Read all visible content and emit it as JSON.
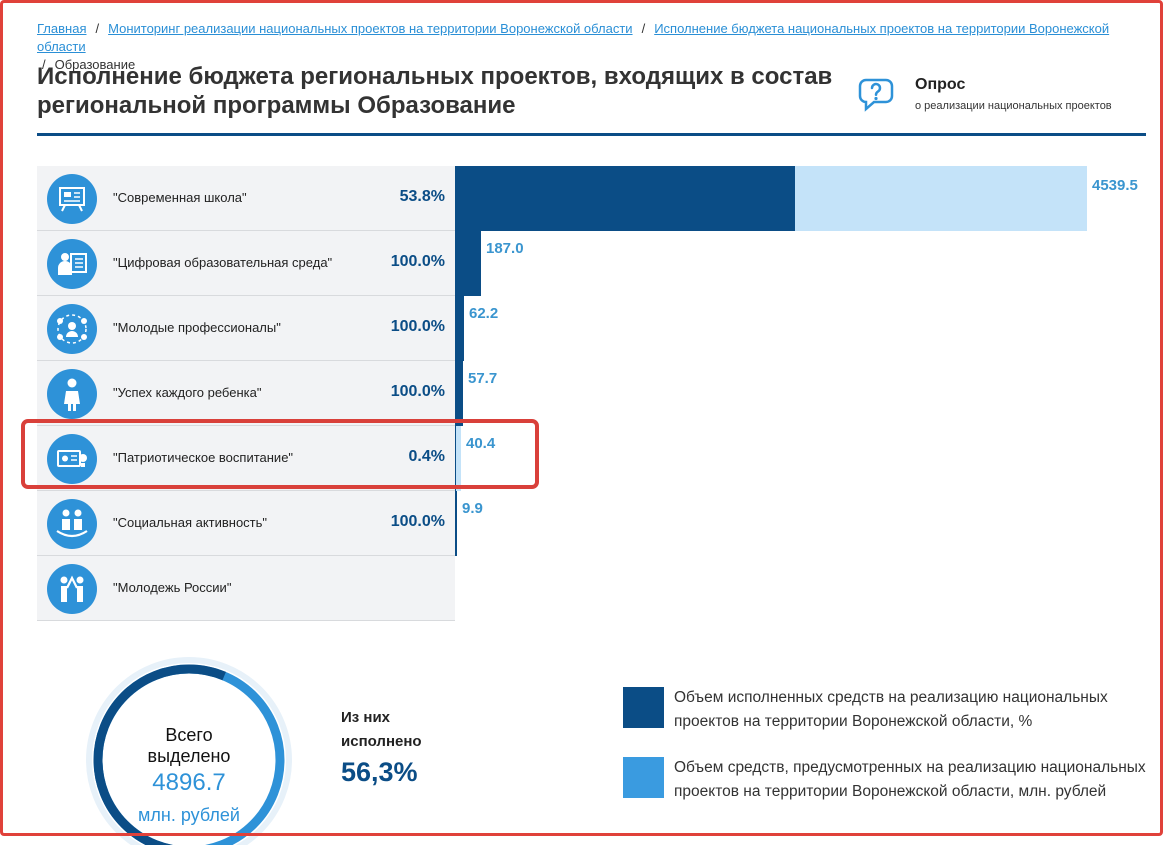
{
  "breadcrumb": {
    "home": "Главная",
    "monitoring": "Мониторинг реализации национальных проектов на территории Воронежской области",
    "budget": "Исполнение бюджета национальных проектов на территории Воронежской области",
    "current": "Образование"
  },
  "page": {
    "title": "Исполнение бюджета региональных проектов, входящих в состав региональной программы Образование"
  },
  "survey": {
    "icon": "question-chat-icon",
    "title": "Опрос",
    "subtitle": "о реализации национальных проектов"
  },
  "colors": {
    "executed": "#0b4d86",
    "planned": "#c4e3f9",
    "accent": "#2e92d8",
    "highlight": "#d9403a"
  },
  "chart_data": {
    "type": "bar",
    "orientation": "horizontal",
    "categories": [
      "\"Современная школа\"",
      "\"Цифровая образовательная среда\"",
      "\"Молодые профессионалы\"",
      "\"Успех каждого ребенка\"",
      "\"Патриотическое воспитание\"",
      "\"Социальная активность\"",
      "\"Молодежь России\""
    ],
    "icons": [
      "school-board-icon",
      "digital-teacher-icon",
      "professionals-network-icon",
      "child-icon",
      "patriotic-card-icon",
      "social-family-icon",
      "youth-group-icon"
    ],
    "planned_values": [
      4539.5,
      187.0,
      62.2,
      57.7,
      40.4,
      9.9,
      null
    ],
    "planned_labels": [
      "4539.5",
      "187.0",
      "62.2",
      "57.7",
      "40.4",
      "9.9",
      ""
    ],
    "executed_percent": [
      53.8,
      100.0,
      100.0,
      100.0,
      0.4,
      100.0,
      null
    ],
    "percent_labels": [
      "53.8%",
      "100.0%",
      "100.0%",
      "100.0%",
      "0.4%",
      "100.0%",
      ""
    ],
    "highlighted_index": 4,
    "xlim": [
      0,
      4539.5
    ]
  },
  "summary": {
    "total_label_1": "Всего",
    "total_label_2": "выделено",
    "total_value": "4896.7",
    "total_unit": "млн. рублей",
    "executed_label": "Из них исполнено",
    "executed_value": "56,3%",
    "executed_fraction": 0.563
  },
  "legend": {
    "executed": "Объем исполненных средств на реализацию национальных проектов на территории Воронежской области, %",
    "planned": "Объем средств, предусмотренных на реализацию национальных проектов на территории Воронежской области, млн. рублей",
    "executed_color": "#0b4d86",
    "planned_color": "#3a9be0"
  }
}
